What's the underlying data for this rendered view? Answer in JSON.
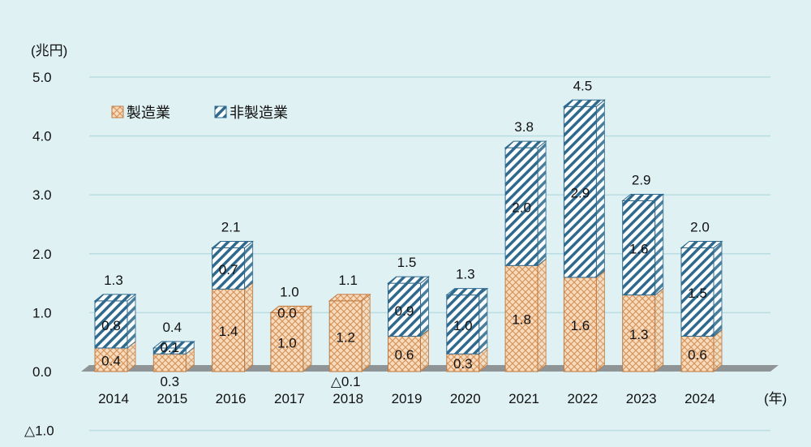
{
  "chart_data": {
    "type": "bar",
    "stacked": true,
    "unit_label": "(兆円)",
    "x_unit_label": "(年)",
    "categories": [
      "2014",
      "2015",
      "2016",
      "2017",
      "2018",
      "2019",
      "2020",
      "2021",
      "2022",
      "2023",
      "2024"
    ],
    "series": [
      {
        "name": "製造業",
        "values": [
          0.4,
          0.3,
          1.4,
          1.0,
          1.2,
          0.6,
          0.3,
          1.8,
          1.6,
          1.3,
          0.6
        ],
        "labels": [
          "0.4",
          "0.3",
          "1.4",
          "1.0",
          "1.2",
          "0.6",
          "0.3",
          "1.8",
          "1.6",
          "1.3",
          "0.6"
        ],
        "color": "#d9955a",
        "fill": "#f6dcc0"
      },
      {
        "name": "非製造業",
        "values": [
          0.8,
          0.1,
          0.7,
          0.0,
          -0.1,
          0.9,
          1.0,
          2.0,
          2.9,
          1.6,
          1.5
        ],
        "labels": [
          "0.8",
          "0.1",
          "0.7",
          "0.0",
          "△0.1",
          "0.9",
          "1.0",
          "2.0",
          "2.9",
          "1.6",
          "1.5"
        ],
        "color": "#2f6a8e",
        "fill": "#ffffff"
      }
    ],
    "totals": [
      "1.3",
      "0.4",
      "2.1",
      "1.0",
      "1.1",
      "1.5",
      "1.3",
      "3.8",
      "4.5",
      "2.9",
      "2.0"
    ],
    "yticks": [
      {
        "value": 5,
        "label": "5.0"
      },
      {
        "value": 4,
        "label": "4.0"
      },
      {
        "value": 3,
        "label": "3.0"
      },
      {
        "value": 2,
        "label": "2.0"
      },
      {
        "value": 1,
        "label": "1.0"
      },
      {
        "value": 0,
        "label": "0.0"
      },
      {
        "value": -1,
        "label": "△1.0"
      }
    ],
    "ylim": [
      -1,
      5
    ],
    "grid": true,
    "legend_position": "top-left"
  }
}
